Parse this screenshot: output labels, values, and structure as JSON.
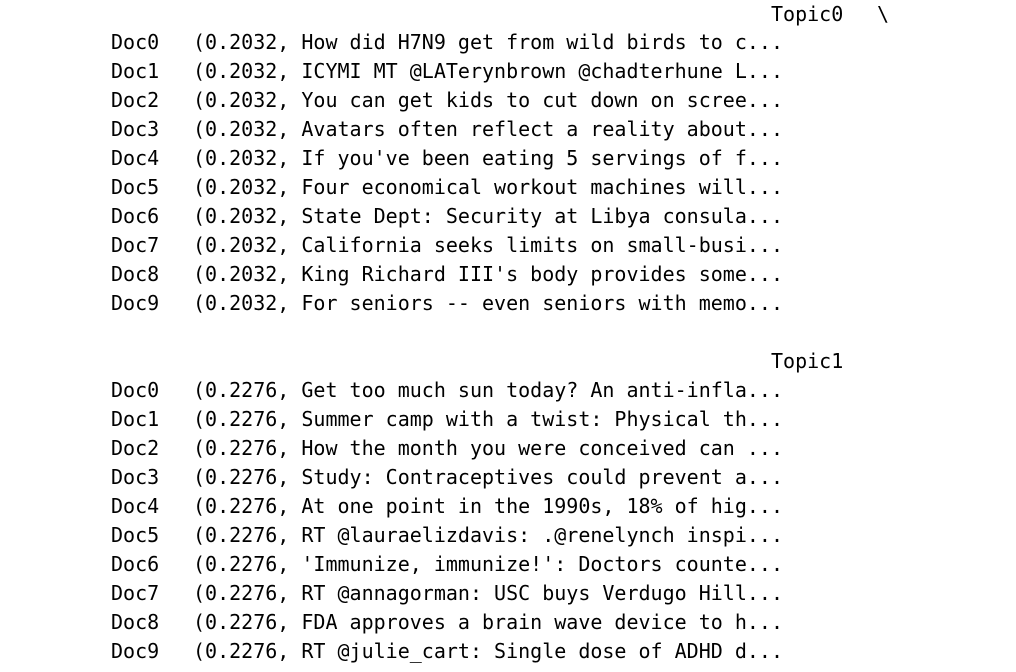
{
  "topics": [
    {
      "header": "Topic0",
      "continuation": "\\",
      "rows": [
        {
          "label": "Doc0",
          "value": "(0.2032, How did H7N9 get from wild birds to c..."
        },
        {
          "label": "Doc1",
          "value": "(0.2032, ICYMI MT @LATerynbrown @chadterhune L..."
        },
        {
          "label": "Doc2",
          "value": "(0.2032, You can get kids to cut down on scree..."
        },
        {
          "label": "Doc3",
          "value": "(0.2032, Avatars often reflect a reality about..."
        },
        {
          "label": "Doc4",
          "value": "(0.2032, If you've been eating 5 servings of f..."
        },
        {
          "label": "Doc5",
          "value": "(0.2032, Four economical workout machines will..."
        },
        {
          "label": "Doc6",
          "value": "(0.2032, State Dept: Security at Libya consula..."
        },
        {
          "label": "Doc7",
          "value": "(0.2032, California seeks limits on small-busi..."
        },
        {
          "label": "Doc8",
          "value": "(0.2032, King Richard III's body provides some..."
        },
        {
          "label": "Doc9",
          "value": "(0.2032, For seniors -- even seniors with memo..."
        }
      ]
    },
    {
      "header": "Topic1",
      "continuation": "",
      "rows": [
        {
          "label": "Doc0",
          "value": "(0.2276, Get too much sun today? An anti-infla..."
        },
        {
          "label": "Doc1",
          "value": "(0.2276, Summer camp with a twist: Physical th..."
        },
        {
          "label": "Doc2",
          "value": "(0.2276, How the month you were conceived can ..."
        },
        {
          "label": "Doc3",
          "value": "(0.2276, Study: Contraceptives could prevent a..."
        },
        {
          "label": "Doc4",
          "value": "(0.2276, At one point in the 1990s, 18% of hig..."
        },
        {
          "label": "Doc5",
          "value": "(0.2276, RT @lauraelizdavis: .@renelynch inspi..."
        },
        {
          "label": "Doc6",
          "value": "(0.2276, 'Immunize, immunize!': Doctors counte..."
        },
        {
          "label": "Doc7",
          "value": "(0.2276, RT @annagorman: USC buys Verdugo Hill..."
        },
        {
          "label": "Doc8",
          "value": "(0.2276, FDA approves a brain wave device to h..."
        },
        {
          "label": "Doc9",
          "value": "(0.2276, RT @julie_cart: Single dose of ADHD d..."
        }
      ]
    }
  ]
}
